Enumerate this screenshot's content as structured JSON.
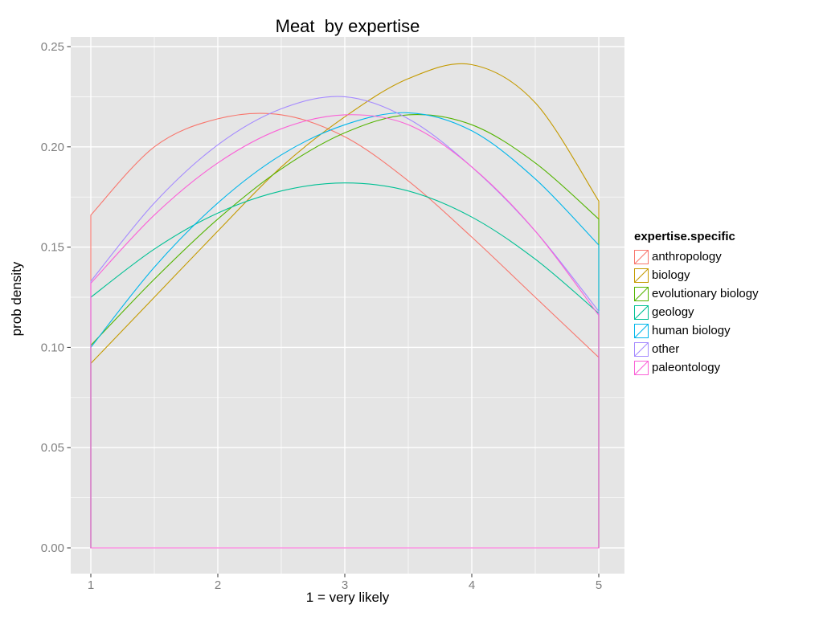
{
  "title": "Meat  by expertise",
  "x_axis": {
    "label": "1 = very likely",
    "ticks": [
      "1",
      "2",
      "3",
      "4",
      "5"
    ],
    "tick_values": [
      1,
      2,
      3,
      4,
      5
    ]
  },
  "y_axis": {
    "label": "prob density",
    "ticks": [
      "0.00",
      "0.05",
      "0.10",
      "0.15",
      "0.20",
      "0.25"
    ],
    "tick_values": [
      0,
      0.05,
      0.1,
      0.15,
      0.2,
      0.25
    ]
  },
  "legend": {
    "title": "expertise.specific"
  },
  "style": {
    "panel_bg": "#E5E5E5",
    "gridline_color": "#FFFFFF",
    "tick_label_color": "#7F7F7F",
    "tick_mark_color": "#333333"
  },
  "chart_data": {
    "type": "line",
    "subtype": "density",
    "title": "Meat  by expertise",
    "xlabel": "1 = very likely",
    "ylabel": "prob density",
    "xlim": [
      1,
      5
    ],
    "ylim": [
      0,
      0.25
    ],
    "grid": true,
    "legend_position": "right",
    "legend_title": "expertise.specific",
    "baseline": 0,
    "x": [
      1,
      1.5,
      2,
      2.5,
      3,
      3.5,
      4,
      4.5,
      5
    ],
    "series": [
      {
        "name": "anthropology",
        "color": "#F8766D",
        "values": [
          0.166,
          0.2,
          0.214,
          0.216,
          0.205,
          0.183,
          0.155,
          0.125,
          0.095
        ]
      },
      {
        "name": "biology",
        "color": "#C49A00",
        "values": [
          0.092,
          0.125,
          0.158,
          0.19,
          0.215,
          0.234,
          0.241,
          0.222,
          0.173
        ]
      },
      {
        "name": "evolutionary biology",
        "color": "#53B400",
        "values": [
          0.101,
          0.134,
          0.164,
          0.189,
          0.207,
          0.216,
          0.211,
          0.192,
          0.164
        ]
      },
      {
        "name": "geology",
        "color": "#00C094",
        "values": [
          0.125,
          0.149,
          0.167,
          0.178,
          0.182,
          0.178,
          0.165,
          0.144,
          0.117
        ]
      },
      {
        "name": "human biology",
        "color": "#00B6EB",
        "values": [
          0.1,
          0.14,
          0.172,
          0.196,
          0.211,
          0.217,
          0.208,
          0.184,
          0.151
        ]
      },
      {
        "name": "other",
        "color": "#A58AFF",
        "values": [
          0.133,
          0.172,
          0.201,
          0.219,
          0.225,
          0.214,
          0.19,
          0.158,
          0.118
        ]
      },
      {
        "name": "paleontology",
        "color": "#FB61D7",
        "values": [
          0.132,
          0.166,
          0.192,
          0.209,
          0.216,
          0.211,
          0.19,
          0.158,
          0.116
        ]
      }
    ]
  }
}
